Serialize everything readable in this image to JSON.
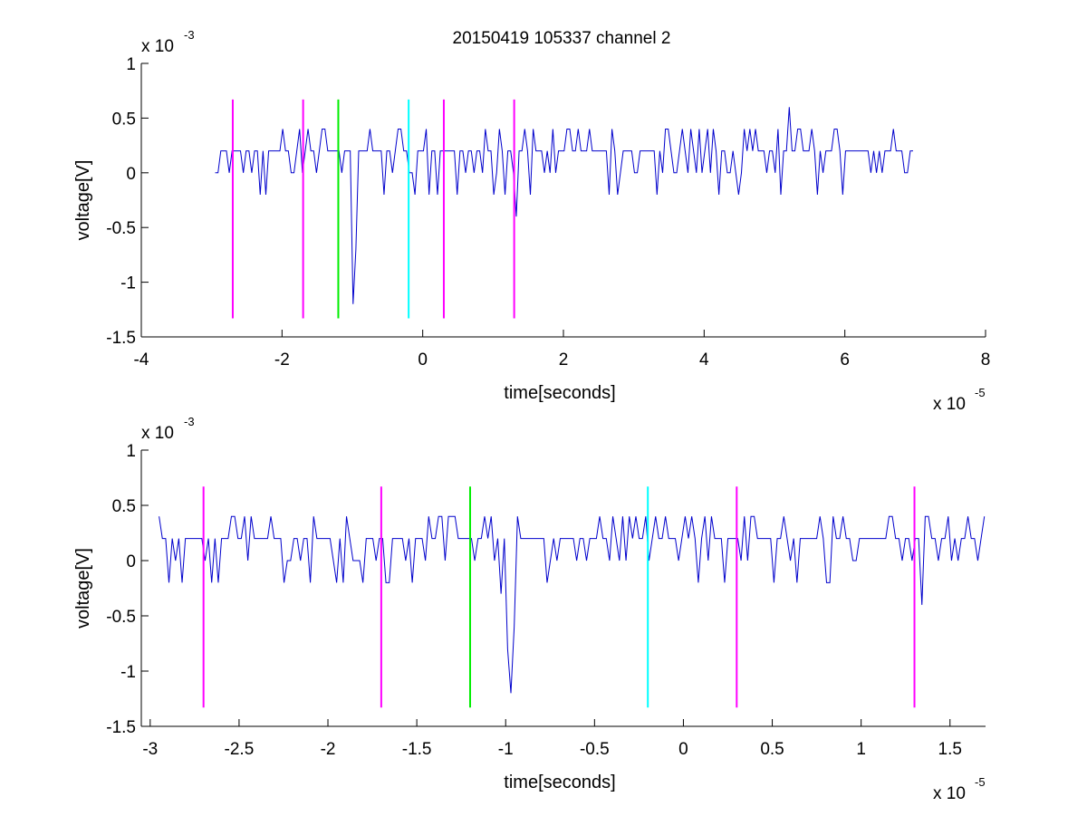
{
  "figure_title": "20150419 105337 channel 2",
  "colors": {
    "signal": "#0000cc",
    "marker_magenta": "#ff00ff",
    "marker_green": "#00ee00",
    "marker_cyan": "#00ffff",
    "axes": "#000000",
    "background": "#ffffff"
  },
  "chart_data": [
    {
      "type": "line",
      "title": "20150419 105337 channel 2",
      "xlabel": "time[seconds]",
      "ylabel": "voltage[V]",
      "x_multiplier": "x 10",
      "x_exponent": "-5",
      "y_multiplier": "x 10",
      "y_exponent": "-3",
      "xlim": [
        -4,
        8
      ],
      "ylim": [
        -1.5,
        1
      ],
      "x_ticks": [
        -4,
        -2,
        0,
        2,
        4,
        6,
        8
      ],
      "x_tick_labels": [
        "-4",
        "-2",
        "0",
        "2",
        "4",
        "6",
        "8"
      ],
      "y_ticks": [
        -1.5,
        -1,
        -0.5,
        0,
        0.5,
        1
      ],
      "y_tick_labels": [
        "-1.5",
        "-1",
        "-0.5",
        "0",
        "0.5",
        "1"
      ],
      "grid": false,
      "signal": {
        "x_start": -2.95,
        "x_end": 7.0,
        "baseline": 0.2,
        "noise_levels": [
          0.0,
          0.2,
          0.4
        ],
        "events": [
          {
            "x": -1.0,
            "y": -1.2
          },
          {
            "x": -0.95,
            "y": -0.7
          },
          {
            "x": 1.35,
            "y": -0.4
          },
          {
            "x": 5.22,
            "y": 0.6
          }
        ]
      },
      "markers": [
        {
          "x": -2.7,
          "y_range": [
            -1.33,
            0.67
          ],
          "color": "magenta"
        },
        {
          "x": -1.7,
          "y_range": [
            -1.33,
            0.67
          ],
          "color": "magenta"
        },
        {
          "x": -1.2,
          "y_range": [
            -1.33,
            0.67
          ],
          "color": "green"
        },
        {
          "x": -0.2,
          "y_range": [
            -1.33,
            0.67
          ],
          "color": "cyan"
        },
        {
          "x": 0.3,
          "y_range": [
            -1.33,
            0.67
          ],
          "color": "magenta"
        },
        {
          "x": 1.3,
          "y_range": [
            -1.33,
            0.67
          ],
          "color": "magenta"
        }
      ]
    },
    {
      "type": "line",
      "title": "",
      "xlabel": "time[seconds]",
      "ylabel": "voltage[V]",
      "x_multiplier": "x 10",
      "x_exponent": "-5",
      "y_multiplier": "x 10",
      "y_exponent": "-3",
      "xlim": [
        -3.05,
        1.7
      ],
      "ylim": [
        -1.5,
        1
      ],
      "x_ticks": [
        -3,
        -2.5,
        -2,
        -1.5,
        -1,
        -0.5,
        0,
        0.5,
        1,
        1.5
      ],
      "x_tick_labels": [
        "-3",
        "-2.5",
        "-2",
        "-1.5",
        "-1",
        "-0.5",
        "0",
        "0.5",
        "1",
        "1.5"
      ],
      "y_ticks": [
        -1.5,
        -1,
        -0.5,
        0,
        0.5,
        1
      ],
      "y_tick_labels": [
        "-1.5",
        "-1",
        "-0.5",
        "0",
        "0.5",
        "1"
      ],
      "grid": false,
      "signal": {
        "x_start": -2.95,
        "x_end": 1.7,
        "baseline": 0.2,
        "noise_levels": [
          0.0,
          0.2,
          0.4
        ],
        "events": [
          {
            "x": -1.02,
            "y": -0.3
          },
          {
            "x": -0.99,
            "y": -0.8
          },
          {
            "x": -0.97,
            "y": -1.2
          },
          {
            "x": -0.95,
            "y": -0.6
          },
          {
            "x": 1.35,
            "y": -0.4
          }
        ]
      },
      "markers": [
        {
          "x": -2.7,
          "y_range": [
            -1.33,
            0.67
          ],
          "color": "magenta"
        },
        {
          "x": -1.7,
          "y_range": [
            -1.33,
            0.67
          ],
          "color": "magenta"
        },
        {
          "x": -1.2,
          "y_range": [
            -1.33,
            0.67
          ],
          "color": "green"
        },
        {
          "x": -0.2,
          "y_range": [
            -1.33,
            0.67
          ],
          "color": "cyan"
        },
        {
          "x": 0.3,
          "y_range": [
            -1.33,
            0.67
          ],
          "color": "magenta"
        },
        {
          "x": 1.3,
          "y_range": [
            -1.33,
            0.67
          ],
          "color": "magenta"
        }
      ]
    }
  ]
}
